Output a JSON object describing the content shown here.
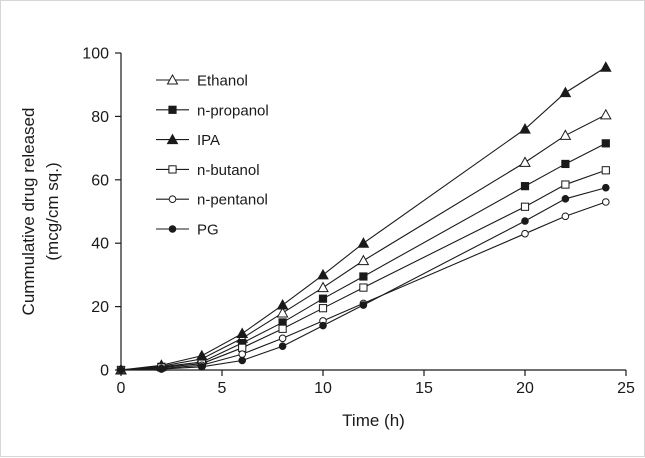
{
  "chart_data": {
    "type": "line",
    "title": "",
    "xlabel": "Time (h)",
    "ylabel_lines": [
      "Cummulative drug released",
      "(mcg/cm sq.)"
    ],
    "xlim": [
      0,
      25
    ],
    "ylim": [
      0,
      100
    ],
    "xticks": [
      0,
      5,
      10,
      15,
      20,
      25
    ],
    "yticks": [
      0,
      20,
      40,
      60,
      80,
      100
    ],
    "xtick_labels": [
      "0",
      "5",
      "10",
      "15",
      "20",
      "25"
    ],
    "ytick_labels": [
      "0",
      "20",
      "40",
      "60",
      "80",
      "100"
    ],
    "grid": false,
    "legend_position": "top-left",
    "x": [
      0,
      2,
      4,
      6,
      8,
      10,
      12,
      20,
      22,
      24
    ],
    "series": [
      {
        "name": "Ethanol",
        "marker": "triangle-open",
        "values": [
          0,
          1.2,
          3.5,
          10,
          18,
          26,
          34.5,
          65.5,
          74,
          80.5
        ]
      },
      {
        "name": "n-propanol",
        "marker": "square-filled",
        "values": [
          0,
          1,
          2.5,
          8.5,
          15,
          22.5,
          29.5,
          58,
          65,
          71.5
        ]
      },
      {
        "name": "IPA",
        "marker": "triangle-filled",
        "values": [
          0,
          1.5,
          4.5,
          11.5,
          20.5,
          30,
          40,
          76,
          87.5,
          95.5
        ]
      },
      {
        "name": "n-butanol",
        "marker": "square-open",
        "values": [
          0,
          0.8,
          2,
          7,
          13,
          19.5,
          26,
          51.5,
          58.5,
          63
        ]
      },
      {
        "name": "n-pentanol",
        "marker": "circle-open",
        "values": [
          0,
          0.5,
          1.5,
          5,
          10,
          15.5,
          21,
          43,
          48.5,
          53
        ]
      },
      {
        "name": "PG",
        "marker": "circle-filled",
        "values": [
          0,
          0.3,
          1,
          3,
          7.5,
          14,
          20.5,
          47,
          54,
          57.5
        ]
      }
    ]
  }
}
